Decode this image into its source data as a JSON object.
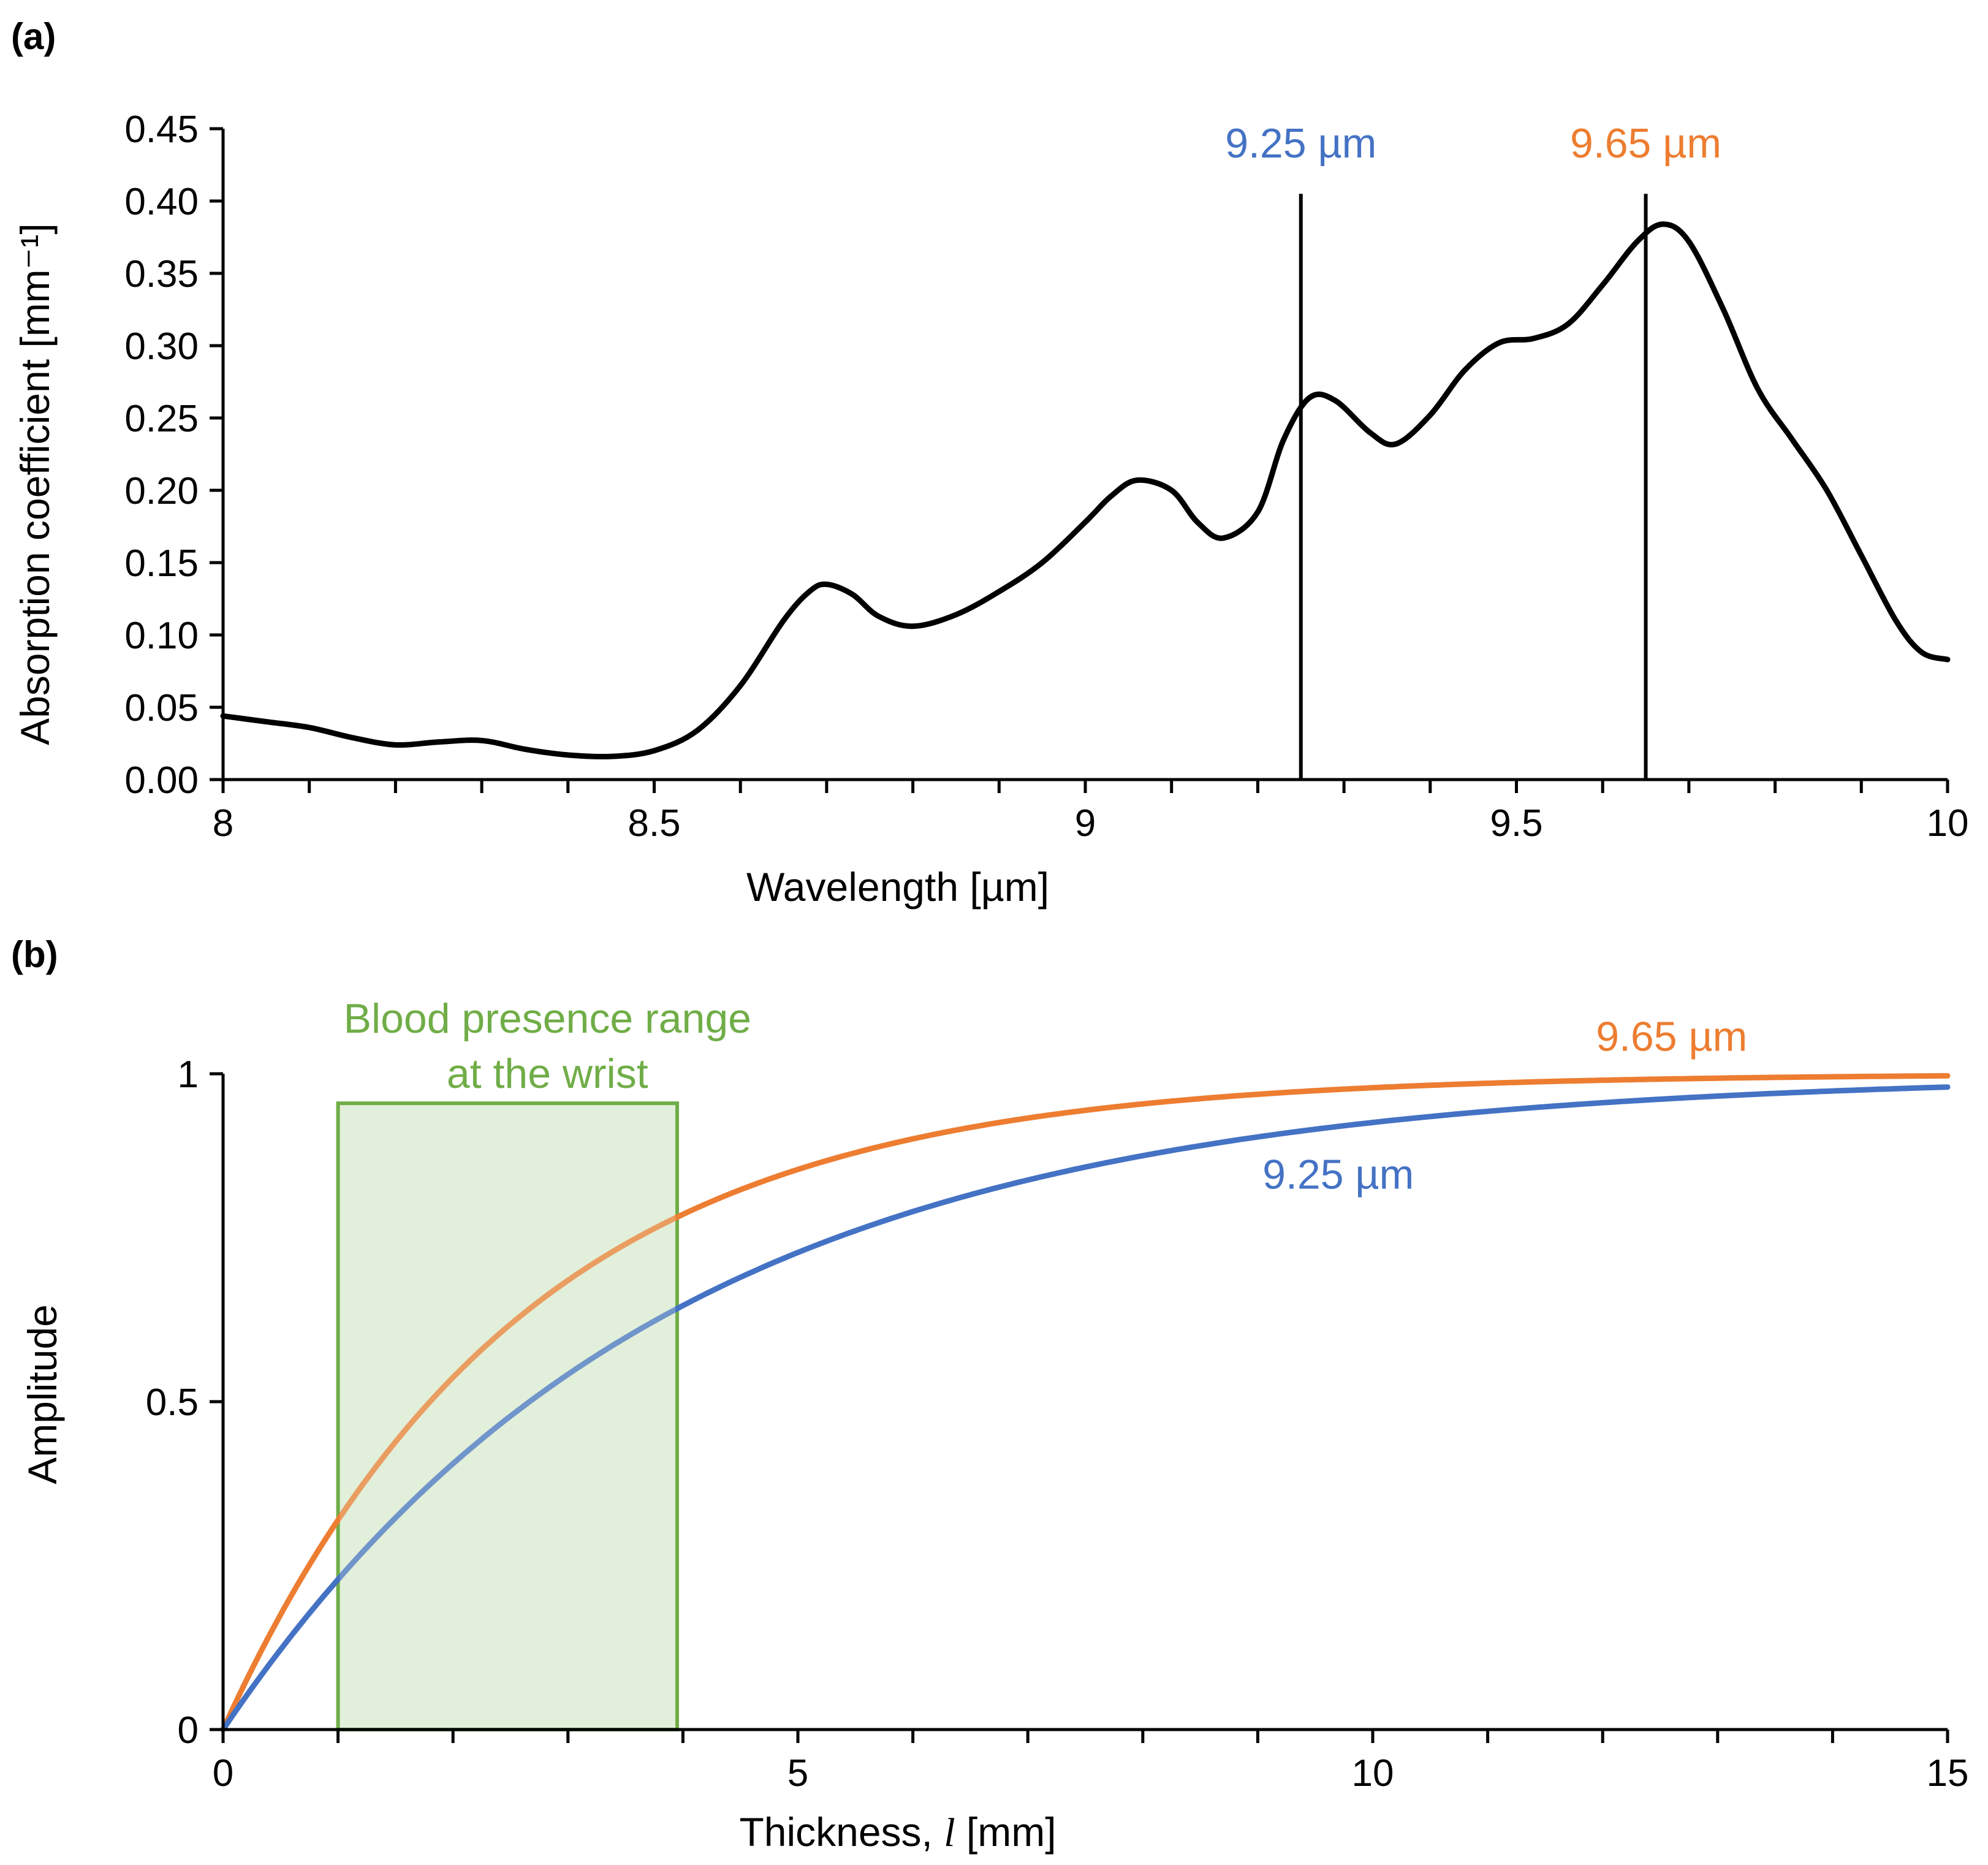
{
  "chart_data": [
    {
      "type": "line",
      "panel_label": "(a)",
      "xlabel": "Wavelength [µm]",
      "ylabel": "Absorption coefficient [mm⁻¹]",
      "xlim": [
        8,
        10
      ],
      "ylim": [
        0,
        0.45
      ],
      "x_ticks": [
        "8",
        "8.5",
        "9",
        "9.5",
        "10"
      ],
      "x_tick_values": [
        8,
        8.5,
        9,
        9.5,
        10
      ],
      "y_ticks": [
        "0.00",
        "0.05",
        "0.10",
        "0.15",
        "0.20",
        "0.25",
        "0.30",
        "0.35",
        "0.40",
        "0.45"
      ],
      "y_tick_values": [
        0,
        0.05,
        0.1,
        0.15,
        0.2,
        0.25,
        0.3,
        0.35,
        0.4,
        0.45
      ],
      "series": [
        {
          "name": "Absorption coefficient",
          "color": "#000000",
          "x": [
            8.0,
            8.05,
            8.1,
            8.15,
            8.2,
            8.25,
            8.3,
            8.35,
            8.4,
            8.45,
            8.5,
            8.55,
            8.6,
            8.65,
            8.68,
            8.7,
            8.73,
            8.76,
            8.8,
            8.85,
            8.9,
            8.95,
            9.0,
            9.03,
            9.06,
            9.1,
            9.13,
            9.16,
            9.2,
            9.23,
            9.26,
            9.29,
            9.33,
            9.36,
            9.4,
            9.44,
            9.48,
            9.52,
            9.56,
            9.6,
            9.64,
            9.67,
            9.7,
            9.74,
            9.78,
            9.82,
            9.86,
            9.9,
            9.94,
            9.97,
            10.0
          ],
          "y": [
            0.044,
            0.04,
            0.036,
            0.029,
            0.024,
            0.026,
            0.027,
            0.021,
            0.017,
            0.016,
            0.02,
            0.034,
            0.065,
            0.11,
            0.13,
            0.135,
            0.128,
            0.113,
            0.106,
            0.114,
            0.13,
            0.15,
            0.178,
            0.196,
            0.207,
            0.2,
            0.178,
            0.167,
            0.185,
            0.235,
            0.264,
            0.262,
            0.24,
            0.232,
            0.252,
            0.283,
            0.302,
            0.305,
            0.315,
            0.342,
            0.372,
            0.384,
            0.372,
            0.325,
            0.27,
            0.235,
            0.2,
            0.155,
            0.11,
            0.088,
            0.083
          ]
        }
      ],
      "markers": [
        {
          "x": 9.25,
          "label": "9.25 µm",
          "color": "#4472C4"
        },
        {
          "x": 9.65,
          "label": "9.65 µm",
          "color": "#ED7D31"
        }
      ]
    },
    {
      "type": "line",
      "panel_label": "(b)",
      "xlabel_prefix": "Thickness, ",
      "xlabel_var": "l",
      "xlabel_suffix": " [mm]",
      "ylabel": "Amplitude",
      "xlim": [
        0,
        15
      ],
      "ylim": [
        0,
        1
      ],
      "x_ticks": [
        "0",
        "5",
        "10",
        "15"
      ],
      "x_tick_values": [
        0,
        5,
        10,
        15
      ],
      "y_ticks": [
        "0",
        "0.5",
        "1"
      ],
      "y_tick_values": [
        0,
        0.5,
        1
      ],
      "series": [
        {
          "name": "9.65 µm",
          "label": "9.65 µm",
          "color": "#ED7D31",
          "model": "1 - exp(-k * l)",
          "k": 0.385
        },
        {
          "name": "9.25 µm",
          "label": "9.25 µm",
          "color": "#4472C4",
          "model": "1 - exp(-k * l)",
          "k": 0.26
        }
      ],
      "region": {
        "label_line1": "Blood presence range",
        "label_line2": "at the wrist",
        "x_range": [
          1.0,
          3.95
        ],
        "y_top": 0.955,
        "color": "#70AD47",
        "fill": "#E2EFDA"
      }
    }
  ]
}
